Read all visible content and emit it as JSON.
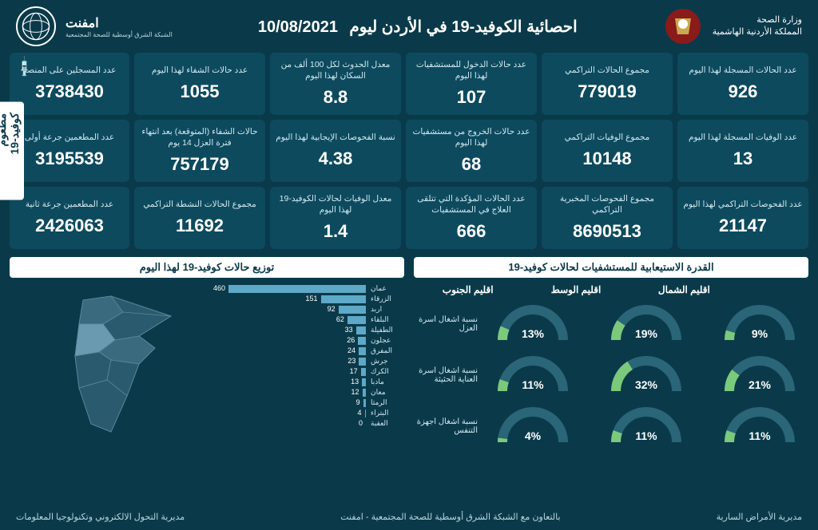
{
  "header": {
    "ministry_line1": "وزارة الصحة",
    "ministry_line2": "المملكة الأردنية الهاشمية",
    "title": "احصائية الكوفيد-19 في الأردن ليوم",
    "date": "10/08/2021",
    "network": "امفنت",
    "network_sub": "الشبكة الشرق أوسطية للصحة المجتمعية"
  },
  "stats": [
    {
      "label": "عدد الحالات المسجلة لهذا اليوم",
      "value": "926"
    },
    {
      "label": "مجموع الحالات التراكمي",
      "value": "779019"
    },
    {
      "label": "عدد حالات الدخول للمستشفيات لهذا اليوم",
      "value": "107"
    },
    {
      "label": "معدل الحدوث لكل 100 ألف من السكان لهذا اليوم",
      "value": "8.8"
    },
    {
      "label": "عدد حالات الشفاء لهذا اليوم",
      "value": "1055"
    },
    {
      "label": "عدد الوفيات المسجلة لهذا اليوم",
      "value": "13"
    },
    {
      "label": "مجموع الوفيات التراكمي",
      "value": "10148"
    },
    {
      "label": "عدد حالات الخروج من مستشفيات لهذا اليوم",
      "value": "68"
    },
    {
      "label": "نسبة الفحوصات الإيجابية لهذا اليوم",
      "value": "4.38"
    },
    {
      "label": "حالات الشفاء (المتوقعة) بعد انتهاء فترة العزل 14 يوم",
      "value": "757179"
    },
    {
      "label": "عدد الفحوصات التراكمي لهذا اليوم",
      "value": "21147"
    },
    {
      "label": "مجموع الفحوصات المخبرية التراكمي",
      "value": "8690513"
    },
    {
      "label": "عدد الحالات المؤكدة التي تتلقى العلاج في المستشفيات",
      "value": "666"
    },
    {
      "label": "معدل الوفيات لحالات الكوفيد-19 لهذا اليوم",
      "value": "1.4"
    },
    {
      "label": "مجموع الحالات النشطة التراكمي",
      "value": "11692"
    }
  ],
  "vaccine": {
    "section_label": "مطعوم كوفيد-19",
    "cards": [
      {
        "label": "عدد المسجلين على المنصة",
        "value": "3738430"
      },
      {
        "label": "عدد المطعمين جرعة أولى",
        "value": "3195539"
      },
      {
        "label": "عدد المطعمين جرعة ثانية",
        "value": "2426063"
      }
    ]
  },
  "capacity": {
    "title": "القدرة الاستيعابية للمستشفيات لحالات كوفيد-19",
    "regions": [
      "اقليم الشمال",
      "اقليم الوسط",
      "اقليم الجنوب"
    ],
    "rows": [
      {
        "label": "نسبة اشغال اسرة العزل",
        "values": [
          9,
          19,
          13
        ]
      },
      {
        "label": "نسبة اشغال اسرة العناية الحثيثة",
        "values": [
          21,
          32,
          11
        ]
      },
      {
        "label": "نسبة اشغال اجهزة التنفس",
        "values": [
          11,
          11,
          4
        ]
      }
    ],
    "gauge_bg": "#1a5266",
    "gauge_fill": "#7bc97b",
    "gauge_track": "#2a6578"
  },
  "distribution": {
    "title": "توزيع حالات كوفيد-19 لهذا اليوم",
    "max": 460,
    "bar_color": "#5da9c7",
    "items": [
      {
        "name": "عمان",
        "value": 460
      },
      {
        "name": "الزرقاء",
        "value": 151
      },
      {
        "name": "اربد",
        "value": 92
      },
      {
        "name": "البلقاء",
        "value": 62
      },
      {
        "name": "الطفيلة",
        "value": 33
      },
      {
        "name": "عجلون",
        "value": 26
      },
      {
        "name": "المفرق",
        "value": 24
      },
      {
        "name": "جرش",
        "value": 23
      },
      {
        "name": "الكرك",
        "value": 17
      },
      {
        "name": "مادبا",
        "value": 13
      },
      {
        "name": "معان",
        "value": 12
      },
      {
        "name": "الرمثا",
        "value": 9
      },
      {
        "name": "البتراء",
        "value": 4
      },
      {
        "name": "العقبة",
        "value": 0
      }
    ]
  },
  "footer": {
    "right": "مديرية الأمراض السارية",
    "center": "بالتعاون مع الشبكة الشرق أوسطية للصحة المجتمعية - امفنت",
    "left": "مديرية التحول الالكتروني وتكنولوجيا المعلومات"
  },
  "colors": {
    "bg": "#0a3a4a",
    "card_bg": "#0d4a5e",
    "text_light": "#d0e8f0",
    "map_fill": "#4a7a8e",
    "map_highlight": "#7aaac0"
  }
}
